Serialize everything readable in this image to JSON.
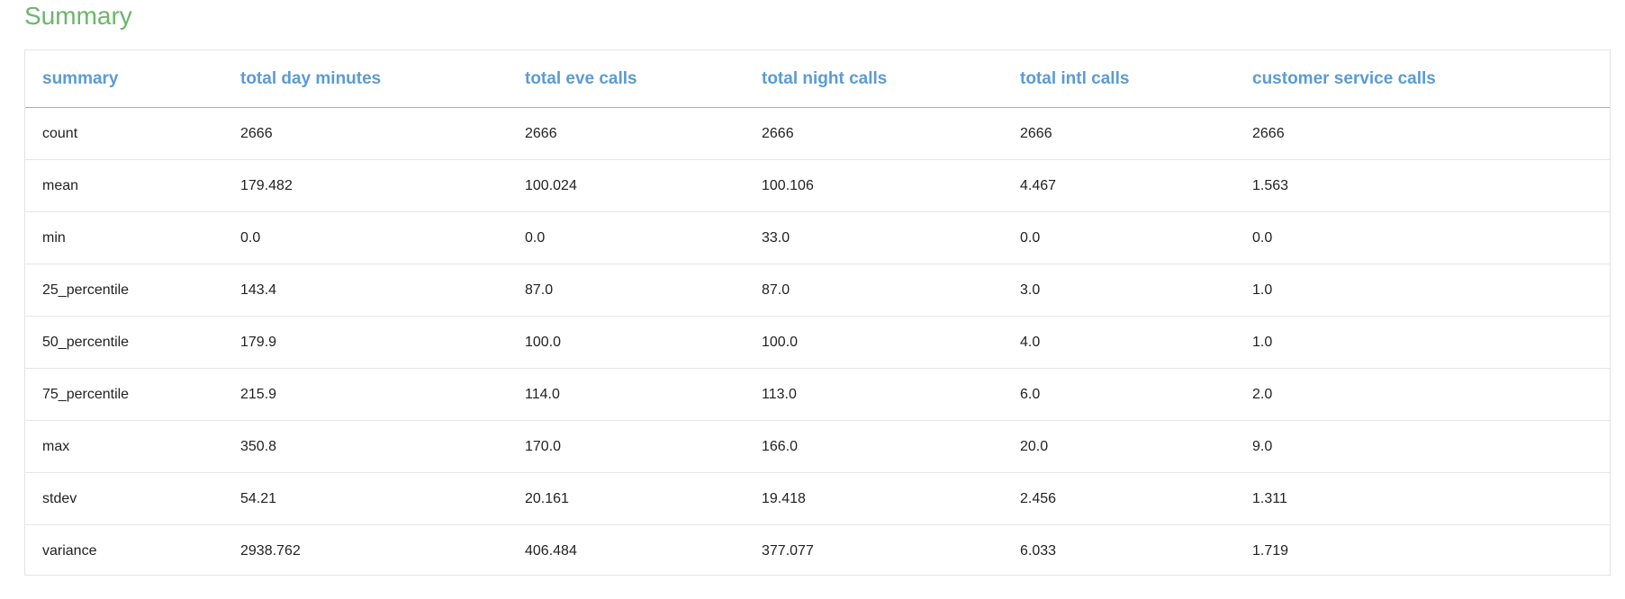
{
  "page": {
    "title": "Summary",
    "title_color": "#6cb56c",
    "header_color": "#5b9bd5"
  },
  "table": {
    "columns": [
      "summary",
      "total day minutes",
      "total eve calls",
      "total night calls",
      "total intl calls",
      "customer service calls"
    ],
    "rows": [
      [
        "count",
        "2666",
        "2666",
        "2666",
        "2666",
        "2666"
      ],
      [
        "mean",
        "179.482",
        "100.024",
        "100.106",
        "4.467",
        "1.563"
      ],
      [
        "min",
        "0.0",
        "0.0",
        "33.0",
        "0.0",
        "0.0"
      ],
      [
        "25_percentile",
        "143.4",
        "87.0",
        "87.0",
        "3.0",
        "1.0"
      ],
      [
        "50_percentile",
        "179.9",
        "100.0",
        "100.0",
        "4.0",
        "1.0"
      ],
      [
        "75_percentile",
        "215.9",
        "114.0",
        "113.0",
        "6.0",
        "2.0"
      ],
      [
        "max",
        "350.8",
        "170.0",
        "166.0",
        "20.0",
        "9.0"
      ],
      [
        "stdev",
        "54.21",
        "20.161",
        "19.418",
        "2.456",
        "1.311"
      ],
      [
        "variance",
        "2938.762",
        "406.484",
        "377.077",
        "6.033",
        "1.719"
      ]
    ]
  }
}
